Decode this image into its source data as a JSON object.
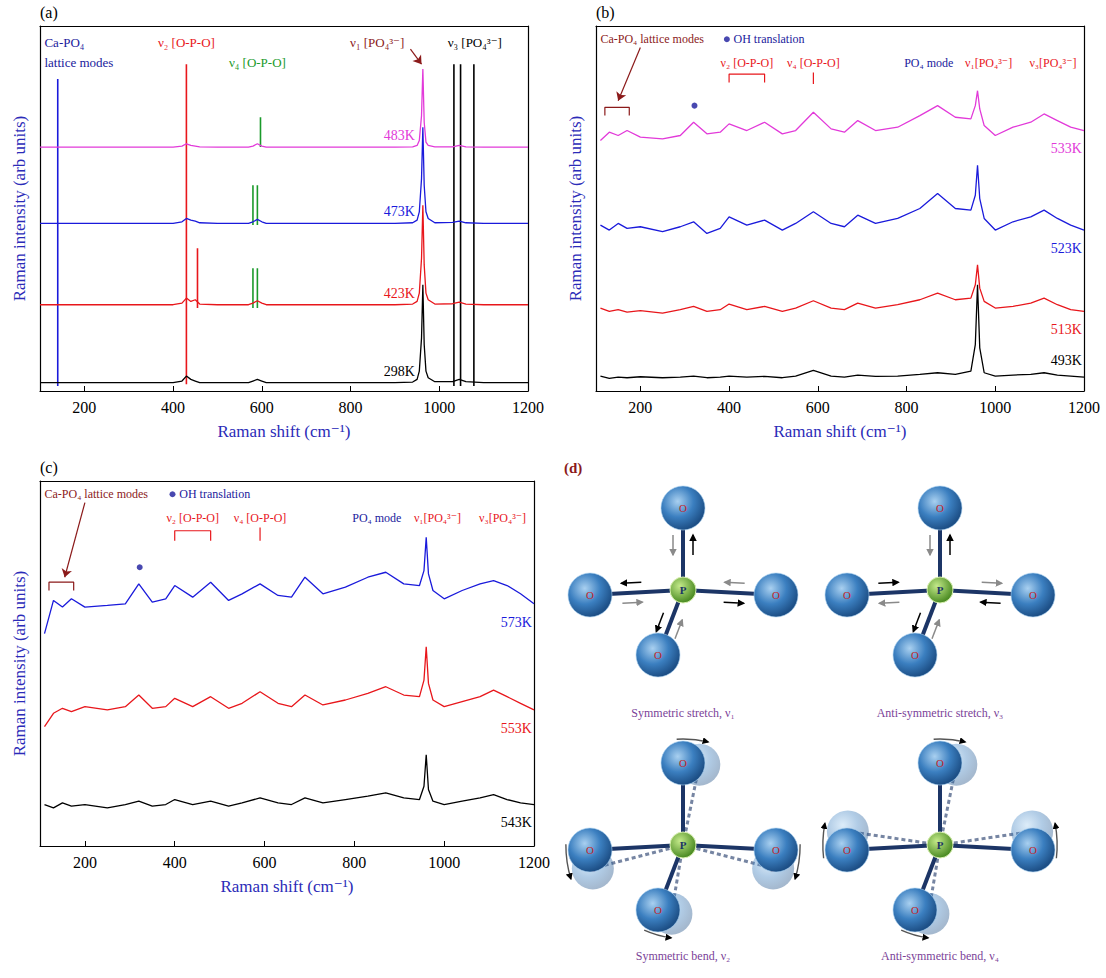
{
  "chart_data": [
    {
      "type": "line",
      "panel_label": "(a)",
      "x_label": "Raman shift (cm⁻¹)",
      "y_label": "Raman intensity (arb units)",
      "xlim": [
        100,
        1200
      ],
      "xticks": [
        200,
        400,
        600,
        800,
        1000,
        1200
      ],
      "ylim": [
        0,
        11
      ],
      "tick_labels": "x",
      "x": [
        100,
        200,
        300,
        400,
        420,
        430,
        440,
        450,
        460,
        500,
        570,
        580,
        590,
        600,
        610,
        700,
        800,
        900,
        940,
        950,
        955,
        960,
        963,
        966,
        970,
        975,
        990,
        1030,
        1045,
        1060,
        1100,
        1200
      ],
      "series": [
        {
          "name": "298K",
          "color": "#000000",
          "values": [
            0.25,
            0.25,
            0.25,
            0.25,
            0.3,
            0.45,
            0.35,
            0.3,
            0.25,
            0.25,
            0.25,
            0.3,
            0.35,
            0.3,
            0.25,
            0.25,
            0.25,
            0.25,
            0.27,
            0.35,
            0.6,
            1.6,
            3.2,
            1.4,
            0.6,
            0.4,
            0.28,
            0.28,
            0.35,
            0.28,
            0.25,
            0.25
          ]
        },
        {
          "name": "423K",
          "color": "#e8161b",
          "values": [
            2.6,
            2.6,
            2.6,
            2.6,
            2.65,
            2.8,
            2.7,
            2.75,
            2.62,
            2.6,
            2.6,
            2.65,
            2.72,
            2.65,
            2.6,
            2.6,
            2.6,
            2.6,
            2.62,
            2.7,
            2.95,
            4.0,
            5.6,
            3.8,
            2.95,
            2.75,
            2.62,
            2.63,
            2.68,
            2.62,
            2.6,
            2.6
          ]
        },
        {
          "name": "473K",
          "color": "#1a1adb",
          "values": [
            5.05,
            5.05,
            5.05,
            5.05,
            5.1,
            5.2,
            5.15,
            5.12,
            5.07,
            5.05,
            5.05,
            5.1,
            5.17,
            5.1,
            5.05,
            5.05,
            5.05,
            5.05,
            5.07,
            5.15,
            5.4,
            6.4,
            7.95,
            6.2,
            5.4,
            5.2,
            5.07,
            5.08,
            5.12,
            5.07,
            5.05,
            5.05
          ]
        },
        {
          "name": "483K",
          "color": "#e23ad9",
          "values": [
            7.35,
            7.35,
            7.35,
            7.35,
            7.38,
            7.45,
            7.4,
            7.38,
            7.36,
            7.35,
            7.35,
            7.38,
            7.45,
            7.38,
            7.35,
            7.35,
            7.35,
            7.35,
            7.36,
            7.4,
            7.55,
            8.3,
            9.7,
            8.1,
            7.5,
            7.4,
            7.36,
            7.36,
            7.4,
            7.36,
            7.35,
            7.35
          ]
        }
      ],
      "vertical_lines": [
        {
          "x": 140,
          "y": [
            0.15,
            9.4
          ],
          "color": "#1a1adb"
        },
        {
          "x": 430,
          "y": [
            0.2,
            9.85
          ],
          "color": "#e8161b"
        },
        {
          "x": 455,
          "y": [
            2.5,
            4.3
          ],
          "color": "#e8161b"
        },
        {
          "x": 580,
          "y": [
            2.5,
            3.7
          ],
          "color": "#1a9a2a"
        },
        {
          "x": 590,
          "y": [
            2.5,
            3.7
          ],
          "color": "#1a9a2a"
        },
        {
          "x": 580,
          "y": [
            5.0,
            6.2
          ],
          "color": "#1a9a2a"
        },
        {
          "x": 590,
          "y": [
            5.0,
            6.2
          ],
          "color": "#1a9a2a"
        },
        {
          "x": 597,
          "y": [
            7.35,
            8.25
          ],
          "color": "#1a9a2a"
        },
        {
          "x": 1033,
          "y": [
            0.15,
            9.85
          ],
          "color": "#000000"
        },
        {
          "x": 1048,
          "y": [
            0.15,
            9.85
          ],
          "color": "#000000"
        },
        {
          "x": 1078,
          "y": [
            0.15,
            9.85
          ],
          "color": "#000000"
        }
      ],
      "annotations": [
        {
          "text": "Ca-PO₄",
          "color": "#1a1a9c"
        },
        {
          "text": "lattice modes",
          "color": "#1a1a9c"
        },
        {
          "text": "ν₂ [O-P-O]",
          "color": "#e8161b"
        },
        {
          "text": "ν₄ [O-P-O]",
          "color": "#1a9a2a"
        },
        {
          "text": "ν₁ [PO₄³⁻]",
          "color": "#8b1a1a"
        },
        {
          "text": "ν₃ [PO₄³⁻]",
          "color": "#000000"
        }
      ]
    },
    {
      "type": "line",
      "panel_label": "(b)",
      "x_label": "Raman shift (cm⁻¹)",
      "y_label": "Raman intensity (arb units)",
      "xlim": [
        100,
        1200
      ],
      "xticks": [
        200,
        400,
        600,
        800,
        1000,
        1200
      ],
      "ylim": [
        0,
        11
      ],
      "tick_labels": "x",
      "x": [
        110,
        130,
        150,
        170,
        200,
        250,
        290,
        320,
        350,
        380,
        400,
        440,
        480,
        520,
        550,
        590,
        630,
        660,
        690,
        730,
        780,
        830,
        870,
        910,
        945,
        955,
        960,
        965,
        975,
        1000,
        1040,
        1080,
        1110,
        1140,
        1170,
        1200
      ],
      "series": [
        {
          "name": "493K",
          "color": "#000000",
          "values": [
            0.45,
            0.38,
            0.42,
            0.4,
            0.43,
            0.4,
            0.42,
            0.45,
            0.4,
            0.42,
            0.45,
            0.42,
            0.44,
            0.4,
            0.45,
            0.62,
            0.45,
            0.42,
            0.48,
            0.44,
            0.45,
            0.5,
            0.55,
            0.5,
            0.6,
            1.4,
            3.2,
            1.3,
            0.55,
            0.45,
            0.48,
            0.5,
            0.55,
            0.48,
            0.45,
            0.42
          ]
        },
        {
          "name": "513K",
          "color": "#e8161b",
          "values": [
            2.5,
            2.4,
            2.45,
            2.38,
            2.42,
            2.35,
            2.45,
            2.55,
            2.4,
            2.45,
            2.62,
            2.45,
            2.55,
            2.4,
            2.5,
            2.72,
            2.5,
            2.45,
            2.65,
            2.5,
            2.6,
            2.75,
            2.95,
            2.75,
            2.8,
            3.2,
            3.8,
            3.1,
            2.7,
            2.5,
            2.55,
            2.65,
            2.8,
            2.6,
            2.45,
            2.4
          ]
        },
        {
          "name": "523K",
          "color": "#1a1adb",
          "values": [
            5.0,
            4.85,
            5.05,
            4.9,
            4.95,
            4.8,
            4.95,
            5.1,
            4.75,
            4.9,
            5.25,
            5.0,
            5.15,
            4.85,
            5.05,
            5.4,
            5.05,
            4.95,
            5.3,
            5.05,
            5.2,
            5.5,
            5.95,
            5.5,
            5.45,
            5.9,
            6.8,
            5.8,
            5.2,
            4.85,
            5.1,
            5.25,
            5.45,
            5.2,
            5.0,
            4.85
          ]
        },
        {
          "name": "533K",
          "color": "#e23ad9",
          "values": [
            7.55,
            7.8,
            7.7,
            7.85,
            7.65,
            7.6,
            7.7,
            8.1,
            7.75,
            7.8,
            8.05,
            7.85,
            8.1,
            7.75,
            7.85,
            8.4,
            7.9,
            7.8,
            8.15,
            7.85,
            7.95,
            8.3,
            8.6,
            8.25,
            8.2,
            8.6,
            9.05,
            8.5,
            8.0,
            7.7,
            7.95,
            8.1,
            8.35,
            8.15,
            7.95,
            7.85
          ]
        }
      ],
      "annotations": [
        {
          "text": "Ca-PO₄ lattice modes",
          "color": "#8b1a1a"
        },
        {
          "text": "OH translation",
          "color": "#1a1a9c"
        },
        {
          "text": "ν₂ [O-P-O]",
          "color": "#e8161b"
        },
        {
          "text": "ν₄ [O-P-O]",
          "color": "#e8161b"
        },
        {
          "text": "PO₄ mode",
          "color": "#1a1a9c"
        },
        {
          "text": "ν₁[PO₄³⁻]",
          "color": "#e8161b"
        },
        {
          "text": "ν₃[PO₄³⁻]",
          "color": "#e8161b"
        }
      ]
    },
    {
      "type": "line",
      "panel_label": "(c)",
      "x_label": "Raman shift (cm⁻¹)",
      "y_label": "Raman intensity (arb units)",
      "xlim": [
        100,
        1200
      ],
      "xticks": [
        200,
        400,
        600,
        800,
        1000,
        1200
      ],
      "ylim": [
        0,
        11
      ],
      "tick_labels": "x",
      "x": [
        110,
        130,
        150,
        170,
        200,
        250,
        290,
        320,
        350,
        380,
        400,
        440,
        480,
        520,
        550,
        590,
        630,
        660,
        690,
        730,
        780,
        830,
        870,
        910,
        945,
        955,
        960,
        965,
        975,
        1000,
        1040,
        1080,
        1110,
        1140,
        1170,
        1200
      ],
      "series": [
        {
          "name": "543K",
          "color": "#000000",
          "values": [
            1.25,
            1.15,
            1.3,
            1.2,
            1.25,
            1.15,
            1.25,
            1.35,
            1.2,
            1.25,
            1.4,
            1.25,
            1.35,
            1.2,
            1.3,
            1.45,
            1.3,
            1.25,
            1.45,
            1.3,
            1.4,
            1.5,
            1.6,
            1.45,
            1.4,
            1.8,
            2.75,
            1.7,
            1.35,
            1.25,
            1.35,
            1.45,
            1.55,
            1.4,
            1.3,
            1.25
          ]
        },
        {
          "name": "553K",
          "color": "#e8161b",
          "values": [
            3.6,
            4.0,
            4.15,
            4.05,
            4.2,
            4.1,
            4.2,
            4.55,
            4.15,
            4.2,
            4.45,
            4.2,
            4.5,
            4.15,
            4.3,
            4.65,
            4.3,
            4.2,
            4.55,
            4.25,
            4.4,
            4.6,
            4.8,
            4.55,
            4.5,
            5.0,
            6.0,
            4.9,
            4.4,
            4.2,
            4.35,
            4.5,
            4.7,
            4.5,
            4.3,
            4.1
          ]
        },
        {
          "name": "573K",
          "color": "#1a1adb",
          "values": [
            6.4,
            7.4,
            7.2,
            7.45,
            7.2,
            7.25,
            7.3,
            7.9,
            7.35,
            7.45,
            7.85,
            7.5,
            7.95,
            7.4,
            7.6,
            7.9,
            7.55,
            7.5,
            8.1,
            7.6,
            7.8,
            8.1,
            8.25,
            7.9,
            7.85,
            8.3,
            9.3,
            8.2,
            7.7,
            7.45,
            7.7,
            7.9,
            8.0,
            7.85,
            7.6,
            7.3
          ]
        }
      ],
      "annotations": [
        {
          "text": "Ca-PO₄ lattice modes",
          "color": "#8b1a1a"
        },
        {
          "text": "OH translation",
          "color": "#1a1a9c"
        },
        {
          "text": "ν₂ [O-P-O]",
          "color": "#e8161b"
        },
        {
          "text": "ν₄ [O-P-O]",
          "color": "#e8161b"
        },
        {
          "text": "PO₄ mode",
          "color": "#1a1a9c"
        },
        {
          "text": "ν₁[PO₄³⁻]",
          "color": "#e8161b"
        },
        {
          "text": "ν₃[PO₄³⁻]",
          "color": "#e8161b"
        }
      ]
    }
  ],
  "diagram": {
    "panel_label": "(d)",
    "center_atom": "P",
    "outer_atom": "O",
    "modes": [
      "Symmetric stretch, ν₁",
      "Anti-symmetric stretch, ν₃",
      "Symmetric bend, ν₂",
      "Anti-symmetric bend, ν₄"
    ]
  }
}
